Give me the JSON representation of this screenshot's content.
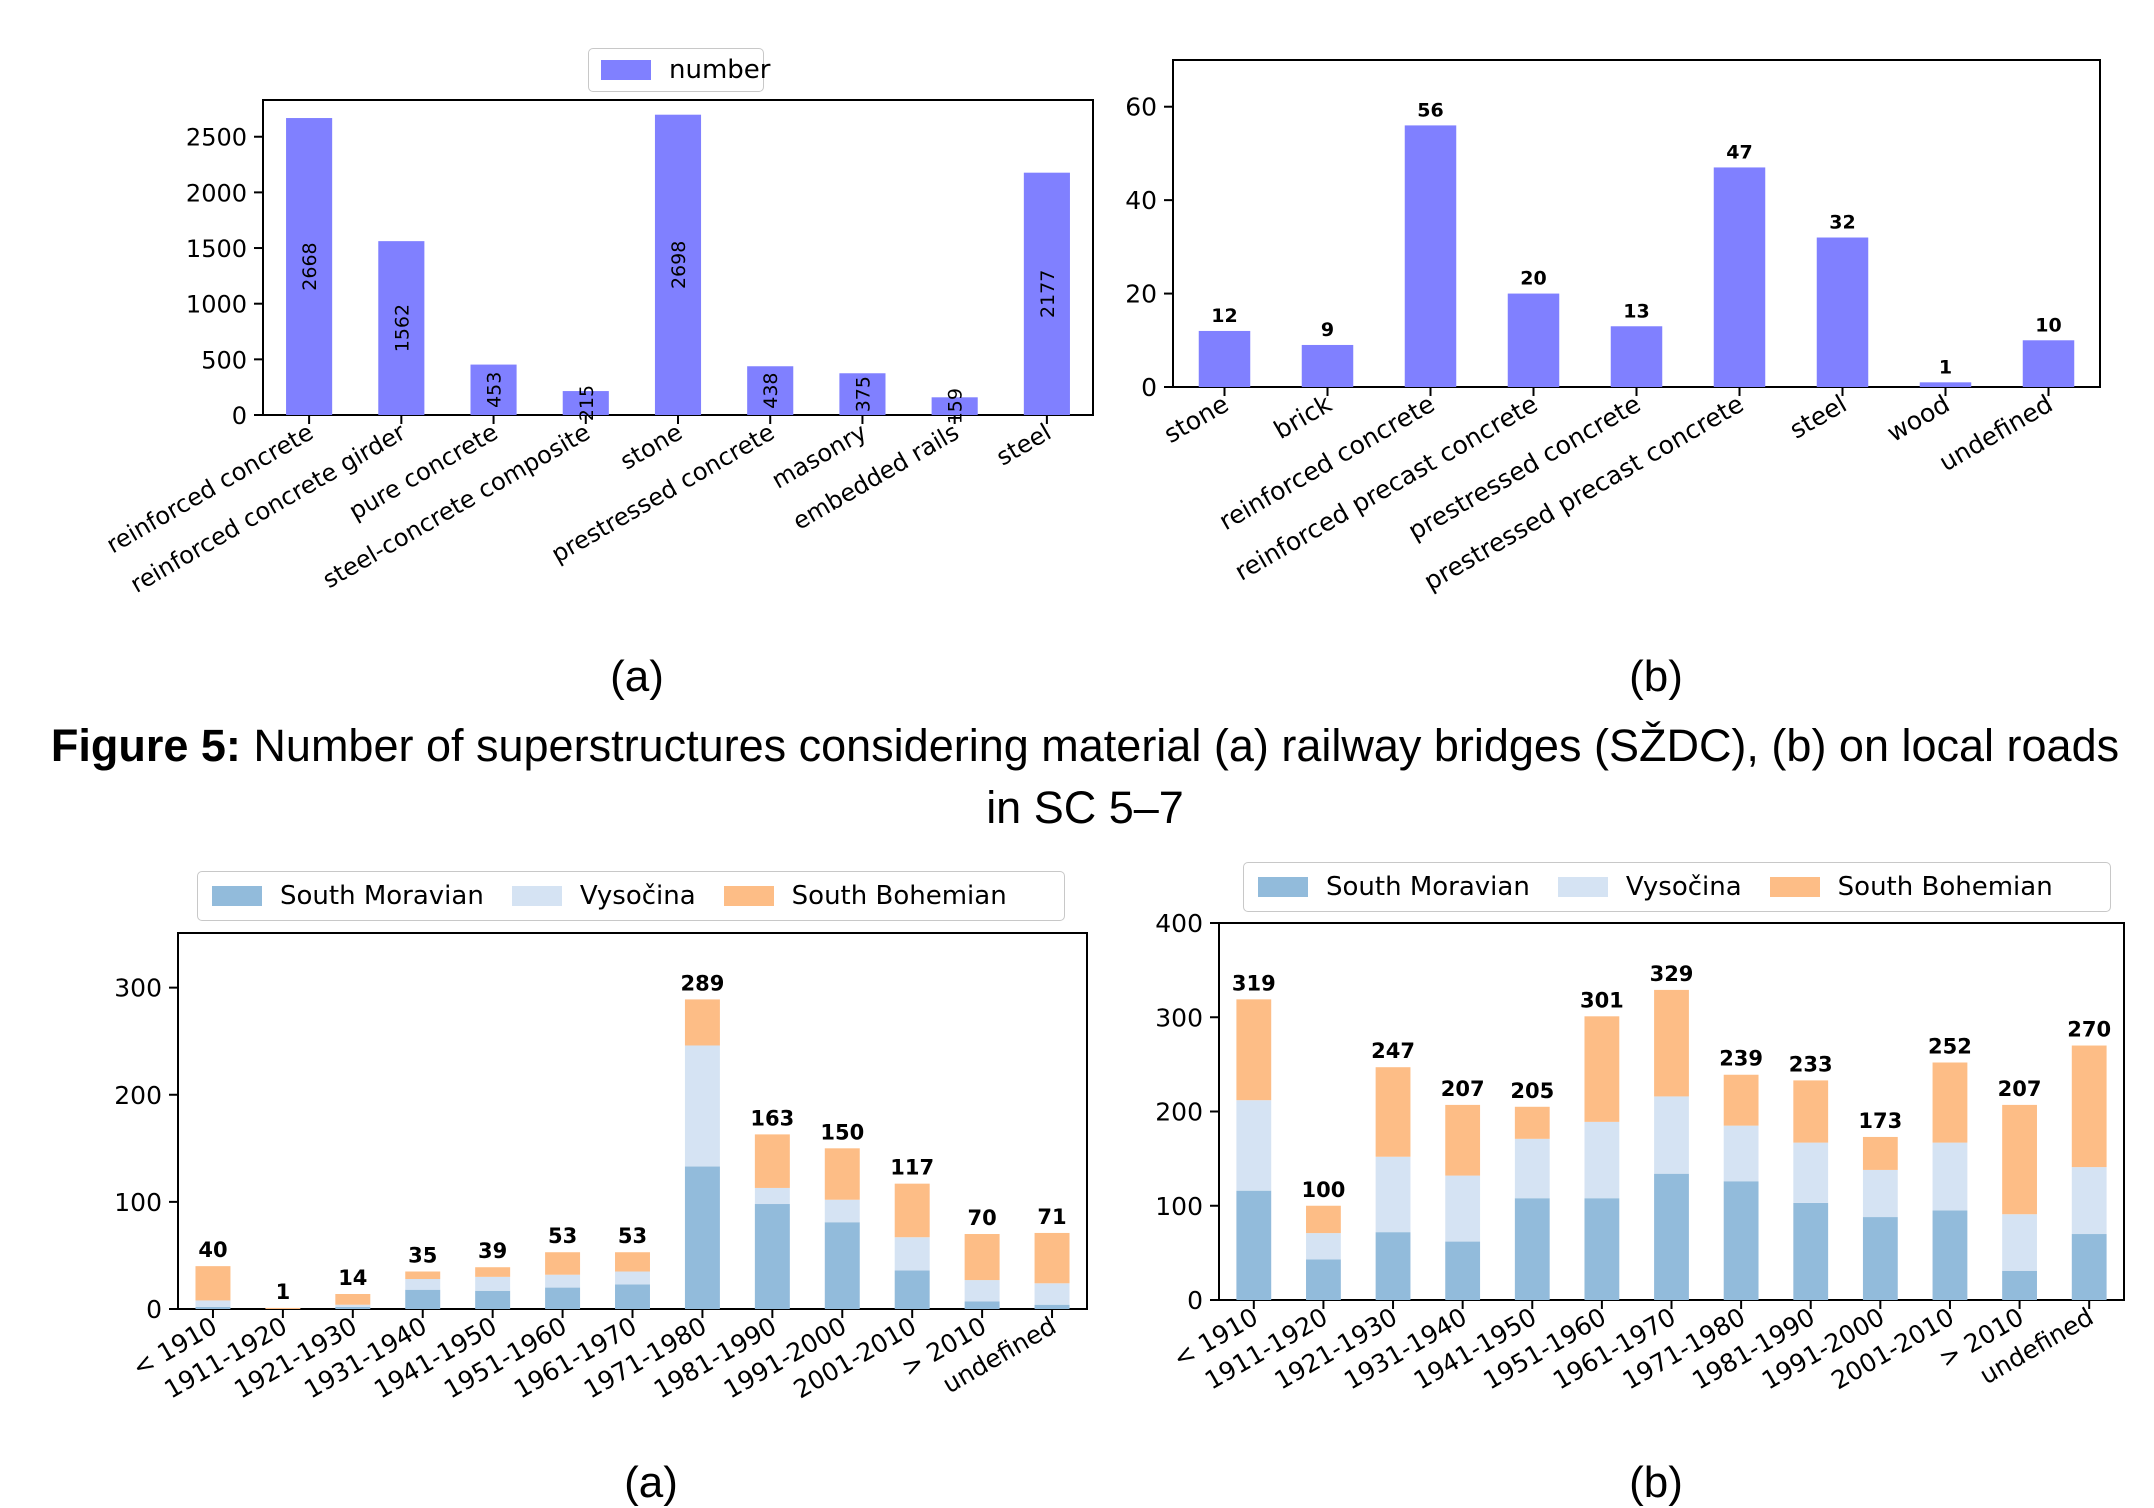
{
  "colors": {
    "single": "#8080ff",
    "south_moravian": "#92bbdb",
    "vysocina": "#d5e3f3",
    "south_bohemian": "#fdbd86"
  },
  "labels": {
    "a": "(a)",
    "b": "(b)"
  },
  "caption": {
    "label": "Figure 5:",
    "text": " Number of superstructures considering material (a) railway bridges (SŽDC), (b) on local roads in SC 5–7"
  },
  "chart_data": [
    {
      "type": "bar",
      "categories": [
        "reinforced concrete",
        "reinforced concrete girder",
        "pure concrete",
        "steel-concrete composite",
        "stone",
        "prestressed concrete",
        "masonry",
        "embedded rails",
        "steel"
      ],
      "series": [
        {
          "name": "number",
          "values": [
            2668,
            1562,
            453,
            215,
            2698,
            438,
            375,
            159,
            2177
          ]
        }
      ],
      "yticks": [
        0,
        500,
        1000,
        1500,
        2000,
        2500
      ],
      "ylim": [
        0,
        2830
      ],
      "legend": "top-center",
      "data_labels": "vertical-inside"
    },
    {
      "type": "bar",
      "categories": [
        "stone",
        "brick",
        "reinforced concrete",
        "reinforced precast concrete",
        "prestressed concrete",
        "prestressed precast concrete",
        "steel",
        "wood",
        "undefined"
      ],
      "series": [
        {
          "values": [
            12,
            9,
            56,
            20,
            13,
            47,
            32,
            1,
            10
          ]
        }
      ],
      "yticks": [
        0,
        20,
        40,
        60
      ],
      "ylim": [
        0,
        70
      ],
      "data_labels": "bold-above"
    },
    {
      "type": "bar",
      "stacked": true,
      "categories": [
        "< 1910",
        "1911-1920",
        "1921-1930",
        "1931-1940",
        "1941-1950",
        "1951-1960",
        "1961-1970",
        "1971-1980",
        "1981-1990",
        "1991-2000",
        "2001-2010",
        "> 2010",
        "undefined"
      ],
      "series": [
        {
          "name": "South Moravian",
          "values": [
            2,
            0,
            2,
            18,
            17,
            20,
            23,
            133,
            98,
            81,
            36,
            7,
            4
          ]
        },
        {
          "name": "Vysočina",
          "values": [
            6,
            0,
            2,
            10,
            13,
            12,
            12,
            113,
            15,
            21,
            31,
            20,
            20
          ]
        },
        {
          "name": "South Bohemian",
          "values": [
            32,
            1,
            10,
            7,
            9,
            21,
            18,
            43,
            50,
            48,
            50,
            43,
            47
          ]
        }
      ],
      "totals": [
        40,
        1,
        14,
        35,
        39,
        53,
        53,
        289,
        163,
        150,
        117,
        70,
        71
      ],
      "yticks": [
        0,
        100,
        200,
        300
      ],
      "ylim": [
        0,
        351
      ],
      "legend": "top-center"
    },
    {
      "type": "bar",
      "stacked": true,
      "categories": [
        "< 1910",
        "1911-1920",
        "1921-1930",
        "1931-1940",
        "1941-1950",
        "1951-1960",
        "1961-1970",
        "1971-1980",
        "1981-1990",
        "1991-2000",
        "2001-2010",
        "> 2010",
        "undefined"
      ],
      "series": [
        {
          "name": "South Moravian",
          "values": [
            116,
            43,
            72,
            62,
            108,
            108,
            134,
            126,
            103,
            88,
            95,
            31,
            70
          ]
        },
        {
          "name": "Vysočina",
          "values": [
            96,
            28,
            80,
            70,
            63,
            81,
            82,
            59,
            64,
            50,
            72,
            60,
            71
          ]
        },
        {
          "name": "South Bohemian",
          "values": [
            107,
            29,
            95,
            75,
            34,
            112,
            113,
            54,
            66,
            35,
            85,
            116,
            129
          ]
        }
      ],
      "totals": [
        319,
        100,
        247,
        207,
        205,
        301,
        329,
        239,
        233,
        173,
        252,
        207,
        270
      ],
      "yticks": [
        0,
        100,
        200,
        300,
        400
      ],
      "ylim": [
        0,
        400
      ],
      "legend": "top-center"
    }
  ]
}
